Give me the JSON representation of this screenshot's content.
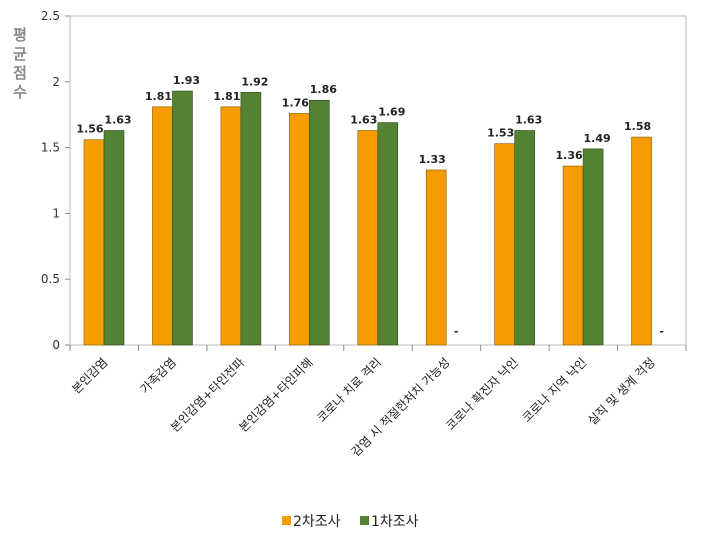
{
  "chart_data": {
    "type": "bar",
    "title": "",
    "ylabel": "평균점수",
    "xlabel": "",
    "ylim": [
      0,
      2.5
    ],
    "yticks": [
      "0",
      "0.5",
      "1",
      "1.5",
      "2",
      "2.5"
    ],
    "grid": false,
    "legend_position": "bottom",
    "categories": [
      "본인감염",
      "가족감염",
      "본인감염+타인전파",
      "본인감염+타인피해",
      "코로나 치료 격리",
      "감염 시 적절한처치 가능성",
      "코로나 확진자 낙인",
      "코로나 지역 낙인",
      "실직 및 생계 걱정"
    ],
    "series": [
      {
        "name": "2차조사",
        "color": "#F59C00",
        "values": [
          1.56,
          1.81,
          1.81,
          1.76,
          1.63,
          1.33,
          1.53,
          1.36,
          1.58
        ],
        "labels": [
          "1.56",
          "1.81",
          "1.81",
          "1.76",
          "1.63",
          "1.33",
          "1.53",
          "1.36",
          "1.58"
        ]
      },
      {
        "name": "1차조사",
        "color": "#548235",
        "values": [
          1.63,
          1.93,
          1.92,
          1.86,
          1.69,
          null,
          1.63,
          1.49,
          null
        ],
        "labels": [
          "1.63",
          "1.93",
          "1.92",
          "1.86",
          "1.69",
          "-",
          "1.63",
          "1.49",
          "-"
        ]
      }
    ]
  }
}
